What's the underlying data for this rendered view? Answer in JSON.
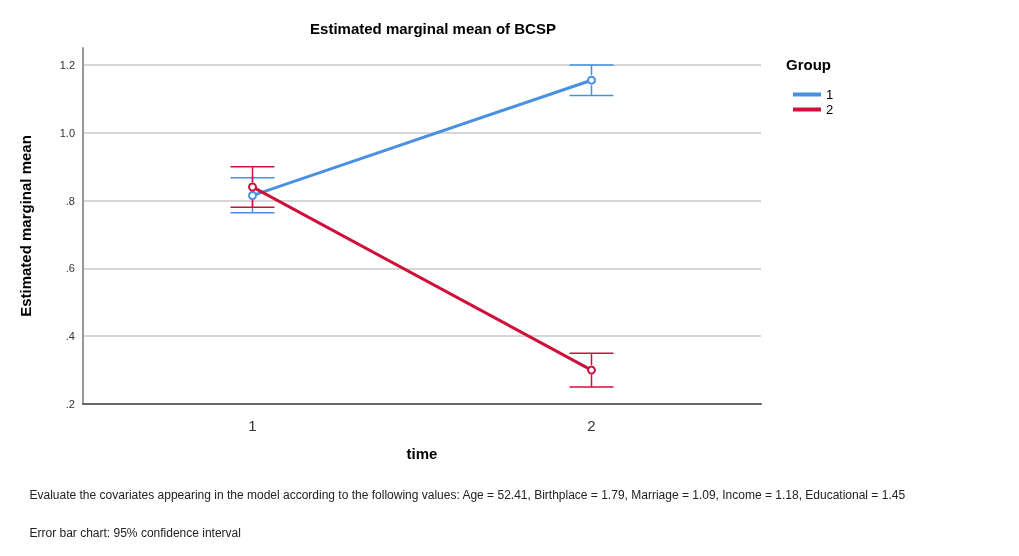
{
  "chart_data": {
    "type": "line",
    "title": "Estimated marginal mean of BCSP",
    "xlabel": "time",
    "ylabel": "Estimated marginal mean",
    "legend_title": "Group",
    "categories": [
      "1",
      "2"
    ],
    "series": [
      {
        "name": "1",
        "color": "#4a90e2",
        "values": [
          0.815,
          1.155
        ],
        "errors": [
          [
            0.764,
            0.867
          ],
          [
            1.11,
            1.2
          ]
        ]
      },
      {
        "name": "2",
        "color": "#d0103a",
        "values": [
          0.84,
          0.3
        ],
        "errors": [
          [
            0.78,
            0.9
          ],
          [
            0.25,
            0.35
          ]
        ]
      }
    ],
    "ylim": [
      0.2,
      1.25
    ],
    "yticks": [
      {
        "value": 0.2,
        "label": ".2"
      },
      {
        "value": 0.4,
        "label": ".4"
      },
      {
        "value": 0.6,
        "label": ".6"
      },
      {
        "value": 0.8,
        "label": ".8"
      },
      {
        "value": 1.0,
        "label": "1.0"
      },
      {
        "value": 1.2,
        "label": "1.2"
      }
    ],
    "grid": "y",
    "legend": "top right",
    "marker": "circle",
    "line_style": "solid",
    "annotations": [
      "Evaluate the covariates appearing in the model according to the following values: Age = 52.41, Birthplace = 1.79, Marriage = 1.09, Income = 1.18, Educational = 1.45",
      "Error bar chart: 95% confidence interval"
    ]
  }
}
